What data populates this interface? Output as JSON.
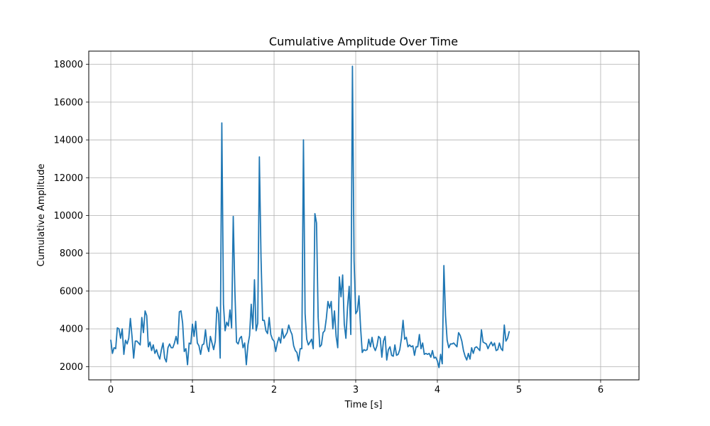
{
  "chart_data": {
    "type": "line",
    "title": "Cumulative Amplitude Over Time",
    "xlabel": "Time [s]",
    "ylabel": "Cumulative Amplitude",
    "xlim": [
      -0.27,
      6.47
    ],
    "ylim": [
      1300,
      18700
    ],
    "xticks": [
      0,
      1,
      2,
      3,
      4,
      5,
      6
    ],
    "xtick_labels": [
      "0",
      "1",
      "2",
      "3",
      "4",
      "5",
      "6"
    ],
    "yticks": [
      2000,
      4000,
      6000,
      8000,
      10000,
      12000,
      14000,
      16000,
      18000
    ],
    "ytick_labels": [
      "2000",
      "4000",
      "6000",
      "8000",
      "10000",
      "12000",
      "14000",
      "16000",
      "18000"
    ],
    "grid": true,
    "line_color": "#1f77b4",
    "series": [
      {
        "name": "cumulative amplitude",
        "x_start": 0,
        "x_step": 0.02,
        "values": [
          3400,
          2700,
          3000,
          2950,
          4050,
          4000,
          3500,
          4000,
          2650,
          3400,
          3200,
          3500,
          4550,
          3600,
          2450,
          3350,
          3350,
          3250,
          3150,
          4600,
          3800,
          4950,
          4700,
          3050,
          3300,
          2850,
          3150,
          2700,
          2900,
          2600,
          2400,
          2900,
          3250,
          2450,
          2250,
          3000,
          3200,
          3000,
          3000,
          3250,
          3600,
          3200,
          4900,
          4950,
          4300,
          2800,
          2950,
          2100,
          3250,
          3200,
          4250,
          3600,
          4400,
          3250,
          3100,
          2650,
          3150,
          3200,
          3950,
          3100,
          2800,
          3600,
          3250,
          2900,
          3350,
          5150,
          4800,
          2450,
          14900,
          5300,
          3900,
          4350,
          4150,
          5000,
          4050,
          9950,
          6000,
          3300,
          3200,
          3500,
          3600,
          3000,
          3250,
          2100,
          3150,
          3650,
          5300,
          4000,
          6600,
          3900,
          4300,
          13100,
          7800,
          4450,
          4450,
          3900,
          3750,
          4600,
          3700,
          3450,
          3350,
          2800,
          3250,
          3550,
          3250,
          4000,
          3500,
          3650,
          3800,
          4200,
          3900,
          3700,
          3100,
          2850,
          2750,
          2300,
          2950,
          2950,
          14000,
          4800,
          3450,
          3150,
          3300,
          3450,
          2950,
          10100,
          9600,
          4600,
          3050,
          3150,
          3800,
          3900,
          4550,
          5450,
          5100,
          5450,
          4000,
          4950,
          3600,
          3000,
          6750,
          5700,
          6850,
          4250,
          3500,
          5150,
          6250,
          3700,
          17900,
          7600,
          4800,
          4950,
          5750,
          4050,
          2750,
          2900,
          2850,
          2900,
          3450,
          3050,
          3550,
          3050,
          2850,
          3100,
          3600,
          3500,
          2500,
          3350,
          3600,
          2350,
          2900,
          3050,
          2600,
          2550,
          3150,
          2600,
          2650,
          2900,
          3500,
          4450,
          3450,
          3550,
          3050,
          3150,
          3050,
          3100,
          2600,
          3050,
          3050,
          3700,
          2950,
          3250,
          2650,
          2700,
          2650,
          2700,
          2500,
          2850,
          2450,
          2500,
          2300,
          1950,
          2650,
          2150,
          7350,
          4700,
          3400,
          3000,
          3200,
          3200,
          3250,
          3150,
          3050,
          3800,
          3650,
          3350,
          2850,
          2550,
          2350,
          2700,
          2400,
          3000,
          2700,
          3000,
          3050,
          2950,
          2850,
          3950,
          3300,
          3250,
          3200,
          2950,
          3150,
          3300,
          3100,
          3250,
          2850,
          2900,
          3250,
          2950,
          2850,
          4200,
          3350,
          3500,
          3850
        ]
      }
    ]
  }
}
